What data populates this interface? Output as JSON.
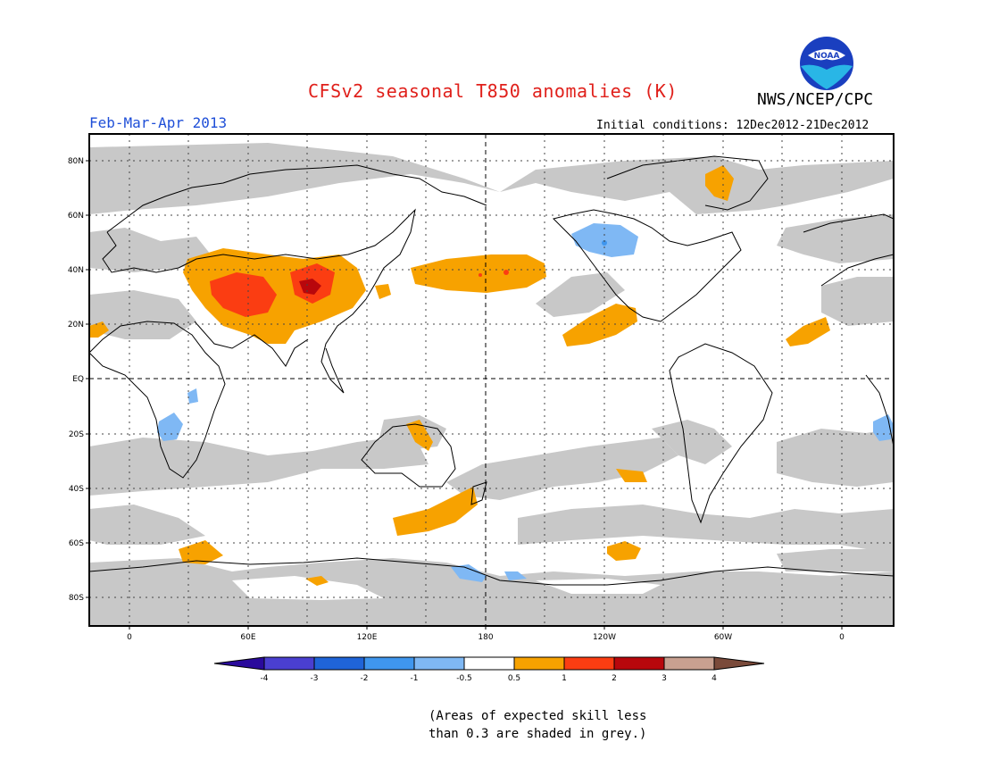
{
  "header": {
    "title": "CFSv2 seasonal T850 anomalies (K)",
    "org": "NWS/NCEP/CPC",
    "logo_text": "NOAA",
    "period": "Feb-Mar-Apr 2013",
    "initial_conditions": "Initial conditions: 12Dec2012-21Dec2012"
  },
  "map": {
    "lat_labels": [
      "80N",
      "60N",
      "40N",
      "20N",
      "EQ",
      "20S",
      "40S",
      "60S",
      "80S"
    ],
    "lon_labels": [
      "0",
      "60E",
      "120E",
      "180",
      "120W",
      "60W",
      "0"
    ]
  },
  "legend": {
    "bins": [
      {
        "range": "< -4",
        "color": "#2a0a9c"
      },
      {
        "range": "-4 to -3",
        "color": "#4a3fd0"
      },
      {
        "range": "-3 to -2",
        "color": "#1f64d8"
      },
      {
        "range": "-2 to -1",
        "color": "#3f96ee"
      },
      {
        "range": "-1 to -0.5",
        "color": "#7fb8f4"
      },
      {
        "range": "-0.5 to 0.5",
        "color": "#ffffff"
      },
      {
        "range": "0.5 to 1",
        "color": "#f7a200"
      },
      {
        "range": "1 to 2",
        "color": "#fb3d12"
      },
      {
        "range": "2 to 3",
        "color": "#b8070c"
      },
      {
        "range": "3 to 4",
        "color": "#c8a090"
      },
      {
        "range": "> 4",
        "color": "#7a4a3a"
      }
    ],
    "tick_labels": [
      "-4",
      "-3",
      "-2",
      "-1",
      "-0.5",
      "0.5",
      "1",
      "2",
      "3",
      "4"
    ],
    "grey_color": "#c8c8c8"
  },
  "caption": {
    "line1": "(Areas of expected skill less",
    "line2": "than 0.3 are shaded in grey.)"
  }
}
